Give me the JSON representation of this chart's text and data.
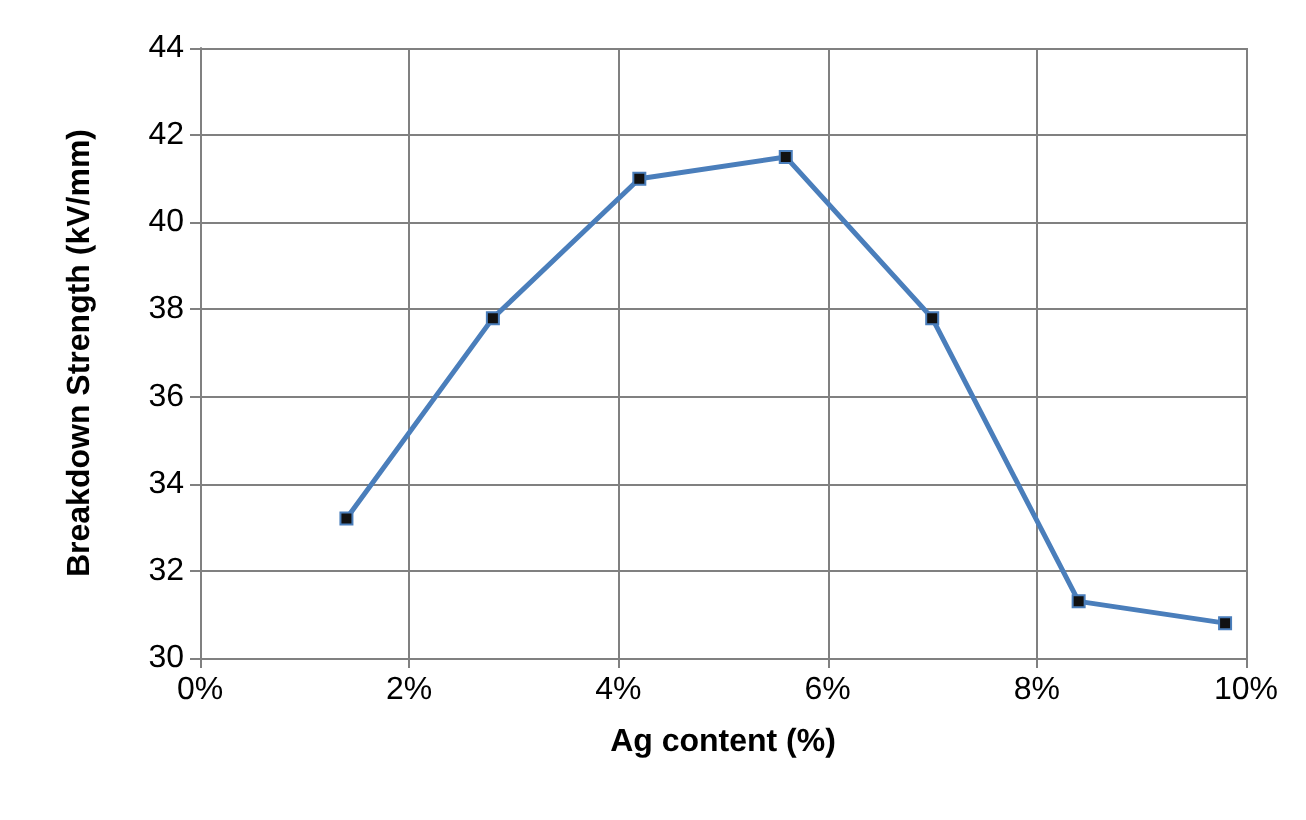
{
  "chart_data": {
    "type": "line",
    "xlabel": "Ag content (%)",
    "ylabel": "Breakdown Strength (kV/mm)",
    "x": [
      1.4,
      2.8,
      4.2,
      5.6,
      7.0,
      8.4,
      9.8
    ],
    "series": [
      {
        "color": "#4a7ebb",
        "values": [
          33.2,
          37.8,
          41.0,
          41.5,
          37.8,
          31.3,
          30.8
        ]
      }
    ],
    "xlim": [
      0,
      10
    ],
    "xticks": [
      {
        "value": 0,
        "label": "0%"
      },
      {
        "value": 2,
        "label": "2%"
      },
      {
        "value": 4,
        "label": "4%"
      },
      {
        "value": 6,
        "label": "6%"
      },
      {
        "value": 8,
        "label": "8%"
      },
      {
        "value": 10,
        "label": "10%"
      }
    ],
    "ylim": [
      30,
      44
    ],
    "yticks": [
      30,
      32,
      34,
      36,
      38,
      40,
      42,
      44
    ],
    "grid": true,
    "marker": "square",
    "line_style": "solid"
  }
}
